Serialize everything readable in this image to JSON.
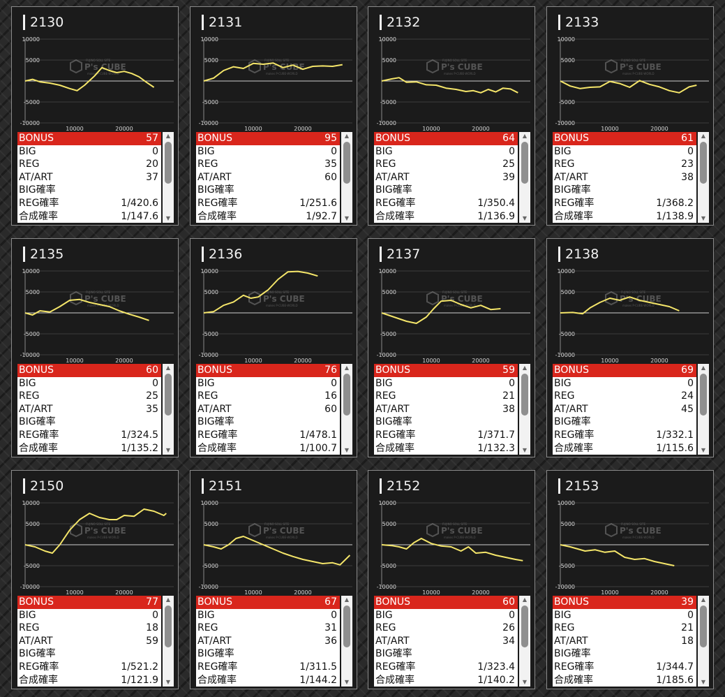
{
  "machines": [
    {
      "id": "2130",
      "bonus": "57",
      "big": "0",
      "reg": "20",
      "atart": "37",
      "big_rate": "",
      "reg_rate": "1/420.6",
      "total_rate": "1/147.6",
      "chart_data": {
        "type": "line",
        "x": [
          0,
          1500,
          3000,
          5000,
          7000,
          9000,
          10500,
          12000,
          14000,
          15500,
          17000,
          18500,
          20000,
          21500,
          23000,
          24500,
          26000
        ],
        "y": [
          0,
          400,
          -200,
          -500,
          -1000,
          -1800,
          -2300,
          -1000,
          1200,
          3200,
          2500,
          2000,
          2300,
          1800,
          1000,
          -300,
          -1500
        ],
        "xlim": [
          0,
          30000
        ],
        "ylim": [
          -10000,
          10000
        ]
      }
    },
    {
      "id": "2131",
      "bonus": "95",
      "big": "0",
      "reg": "35",
      "atart": "60",
      "big_rate": "",
      "reg_rate": "1/251.6",
      "total_rate": "1/92.7",
      "chart_data": {
        "type": "line",
        "x": [
          0,
          2000,
          4000,
          6000,
          8000,
          10000,
          12000,
          14000,
          16000,
          18000,
          20000,
          22000,
          24000,
          26000,
          28000
        ],
        "y": [
          0,
          700,
          2500,
          3400,
          3000,
          4200,
          4000,
          4300,
          3200,
          3800,
          2800,
          3500,
          3600,
          3500,
          3900
        ],
        "xlim": [
          0,
          30000
        ],
        "ylim": [
          -10000,
          10000
        ]
      }
    },
    {
      "id": "2132",
      "bonus": "64",
      "big": "0",
      "reg": "25",
      "atart": "39",
      "big_rate": "",
      "reg_rate": "1/350.4",
      "total_rate": "1/136.9",
      "chart_data": {
        "type": "line",
        "x": [
          0,
          2000,
          3500,
          5000,
          7000,
          9000,
          11000,
          13000,
          15000,
          17000,
          18500,
          20000,
          21500,
          23000,
          24500,
          26000,
          27500
        ],
        "y": [
          0,
          500,
          800,
          -300,
          -200,
          -900,
          -1000,
          -1700,
          -2000,
          -2500,
          -2300,
          -2800,
          -2000,
          -2600,
          -1700,
          -1900,
          -2800
        ],
        "xlim": [
          0,
          30000
        ],
        "ylim": [
          -10000,
          10000
        ]
      }
    },
    {
      "id": "2133",
      "bonus": "61",
      "big": "0",
      "reg": "23",
      "atart": "38",
      "big_rate": "",
      "reg_rate": "1/368.2",
      "total_rate": "1/138.9",
      "chart_data": {
        "type": "line",
        "x": [
          0,
          2000,
          4000,
          6000,
          8000,
          10000,
          12000,
          14000,
          16000,
          18000,
          20000,
          22000,
          24000,
          26000,
          27500
        ],
        "y": [
          0,
          -1200,
          -1800,
          -1500,
          -1400,
          -100,
          -600,
          -1500,
          100,
          -800,
          -1400,
          -2300,
          -2800,
          -1400,
          -1000
        ],
        "xlim": [
          0,
          30000
        ],
        "ylim": [
          -10000,
          10000
        ]
      }
    },
    {
      "id": "2135",
      "bonus": "60",
      "big": "0",
      "reg": "25",
      "atart": "35",
      "big_rate": "",
      "reg_rate": "1/324.5",
      "total_rate": "1/135.2",
      "chart_data": {
        "type": "line",
        "x": [
          0,
          1500,
          3000,
          5000,
          7000,
          9000,
          11000,
          13000,
          15000,
          17000,
          19000,
          21000,
          23000,
          25000
        ],
        "y": [
          0,
          -500,
          500,
          200,
          1500,
          3000,
          3200,
          2500,
          2000,
          1500,
          500,
          -300,
          -1000,
          -1800
        ],
        "xlim": [
          0,
          30000
        ],
        "ylim": [
          -10000,
          10000
        ]
      }
    },
    {
      "id": "2136",
      "bonus": "76",
      "big": "0",
      "reg": "16",
      "atart": "60",
      "big_rate": "",
      "reg_rate": "1/478.1",
      "total_rate": "1/100.7",
      "chart_data": {
        "type": "line",
        "x": [
          0,
          2000,
          4000,
          6000,
          8000,
          9500,
          11000,
          13000,
          15000,
          17000,
          19000,
          21000,
          23000
        ],
        "y": [
          0,
          300,
          1800,
          2600,
          4200,
          3500,
          3800,
          5500,
          8000,
          9800,
          9900,
          9500,
          8800
        ],
        "xlim": [
          0,
          30000
        ],
        "ylim": [
          -10000,
          10000
        ]
      }
    },
    {
      "id": "2137",
      "bonus": "59",
      "big": "0",
      "reg": "21",
      "atart": "38",
      "big_rate": "",
      "reg_rate": "1/371.7",
      "total_rate": "1/132.3",
      "chart_data": {
        "type": "line",
        "x": [
          0,
          2500,
          5000,
          7000,
          9000,
          10500,
          12000,
          14000,
          16000,
          18000,
          20000,
          22000,
          24000
        ],
        "y": [
          0,
          -1000,
          -2000,
          -2500,
          -1000,
          1000,
          2800,
          3000,
          2000,
          1200,
          1800,
          800,
          1000
        ],
        "xlim": [
          0,
          30000
        ],
        "ylim": [
          -10000,
          10000
        ]
      }
    },
    {
      "id": "2138",
      "bonus": "69",
      "big": "0",
      "reg": "24",
      "atart": "45",
      "big_rate": "",
      "reg_rate": "1/332.1",
      "total_rate": "1/115.6",
      "chart_data": {
        "type": "line",
        "x": [
          0,
          2500,
          4500,
          6000,
          8000,
          10000,
          12000,
          14000,
          16000,
          18000,
          20000,
          22000,
          24000
        ],
        "y": [
          0,
          100,
          -200,
          1200,
          2500,
          3500,
          3000,
          3800,
          3000,
          2500,
          2000,
          1500,
          500
        ],
        "xlim": [
          0,
          30000
        ],
        "ylim": [
          -10000,
          10000
        ]
      }
    },
    {
      "id": "2150",
      "bonus": "77",
      "big": "0",
      "reg": "18",
      "atart": "59",
      "big_rate": "",
      "reg_rate": "1/521.2",
      "total_rate": "1/121.9",
      "chart_data": {
        "type": "line",
        "x": [
          0,
          2000,
          4000,
          5500,
          7000,
          9000,
          11000,
          13000,
          15000,
          17000,
          18500,
          20000,
          22000,
          24000,
          26000,
          28000,
          28500
        ],
        "y": [
          0,
          -500,
          -1500,
          -2000,
          0,
          3500,
          6000,
          7500,
          6500,
          6000,
          6000,
          7000,
          6800,
          8500,
          8000,
          7000,
          7500
        ],
        "xlim": [
          0,
          30000
        ],
        "ylim": [
          -10000,
          10000
        ]
      }
    },
    {
      "id": "2151",
      "bonus": "67",
      "big": "0",
      "reg": "31",
      "atart": "36",
      "big_rate": "",
      "reg_rate": "1/311.5",
      "total_rate": "1/144.2",
      "chart_data": {
        "type": "line",
        "x": [
          0,
          2000,
          3500,
          5000,
          6500,
          8000,
          10000,
          12000,
          14000,
          16000,
          18000,
          20000,
          22000,
          24000,
          26000,
          27500,
          29500
        ],
        "y": [
          0,
          -500,
          -1000,
          0,
          1500,
          2000,
          1000,
          0,
          -1000,
          -2000,
          -2800,
          -3500,
          -4000,
          -4500,
          -4300,
          -4800,
          -2500
        ],
        "xlim": [
          0,
          30000
        ],
        "ylim": [
          -10000,
          10000
        ]
      }
    },
    {
      "id": "2152",
      "bonus": "60",
      "big": "0",
      "reg": "26",
      "atart": "34",
      "big_rate": "",
      "reg_rate": "1/323.4",
      "total_rate": "1/140.2",
      "chart_data": {
        "type": "line",
        "x": [
          0,
          2000,
          3500,
          5000,
          6500,
          8000,
          10000,
          12000,
          14000,
          16000,
          17500,
          19000,
          21000,
          23000,
          25000,
          27000,
          28500
        ],
        "y": [
          0,
          -200,
          -500,
          -1000,
          500,
          1500,
          300,
          -300,
          -500,
          -1500,
          -500,
          -2000,
          -1800,
          -2500,
          -3000,
          -3500,
          -3800
        ],
        "xlim": [
          0,
          30000
        ],
        "ylim": [
          -10000,
          10000
        ]
      }
    },
    {
      "id": "2153",
      "bonus": "39",
      "big": "0",
      "reg": "21",
      "atart": "18",
      "big_rate": "",
      "reg_rate": "1/344.7",
      "total_rate": "1/185.6",
      "chart_data": {
        "type": "line",
        "x": [
          0,
          2000,
          3500,
          5000,
          7000,
          9000,
          11000,
          13000,
          15000,
          17000,
          19000,
          21000,
          23000
        ],
        "y": [
          0,
          -500,
          -1000,
          -1500,
          -1200,
          -1800,
          -1500,
          -3000,
          -3500,
          -3300,
          -4000,
          -4500,
          -5000
        ],
        "xlim": [
          0,
          30000
        ],
        "ylim": [
          -10000,
          10000
        ]
      }
    }
  ],
  "labels": {
    "bonus": "BONUS",
    "big": "BIG",
    "reg": "REG",
    "atart": "AT/ART",
    "big_rate": "BIG確率",
    "reg_rate": "REG確率",
    "total_rate": "合成確率"
  },
  "axis": {
    "y_ticks": [
      "10000",
      "5000",
      "-5000",
      "-10000"
    ],
    "x_ticks": [
      "10000",
      "20000"
    ]
  },
  "watermark": {
    "brand": "P's CUBE",
    "top": "FUJINO SOLL SITE",
    "bottom": "makes P-CUBE-WORLD"
  },
  "colors": {
    "line": "#f5e66a",
    "bonus_bg": "#d9261c",
    "card_bg": "#1b1b1b"
  }
}
